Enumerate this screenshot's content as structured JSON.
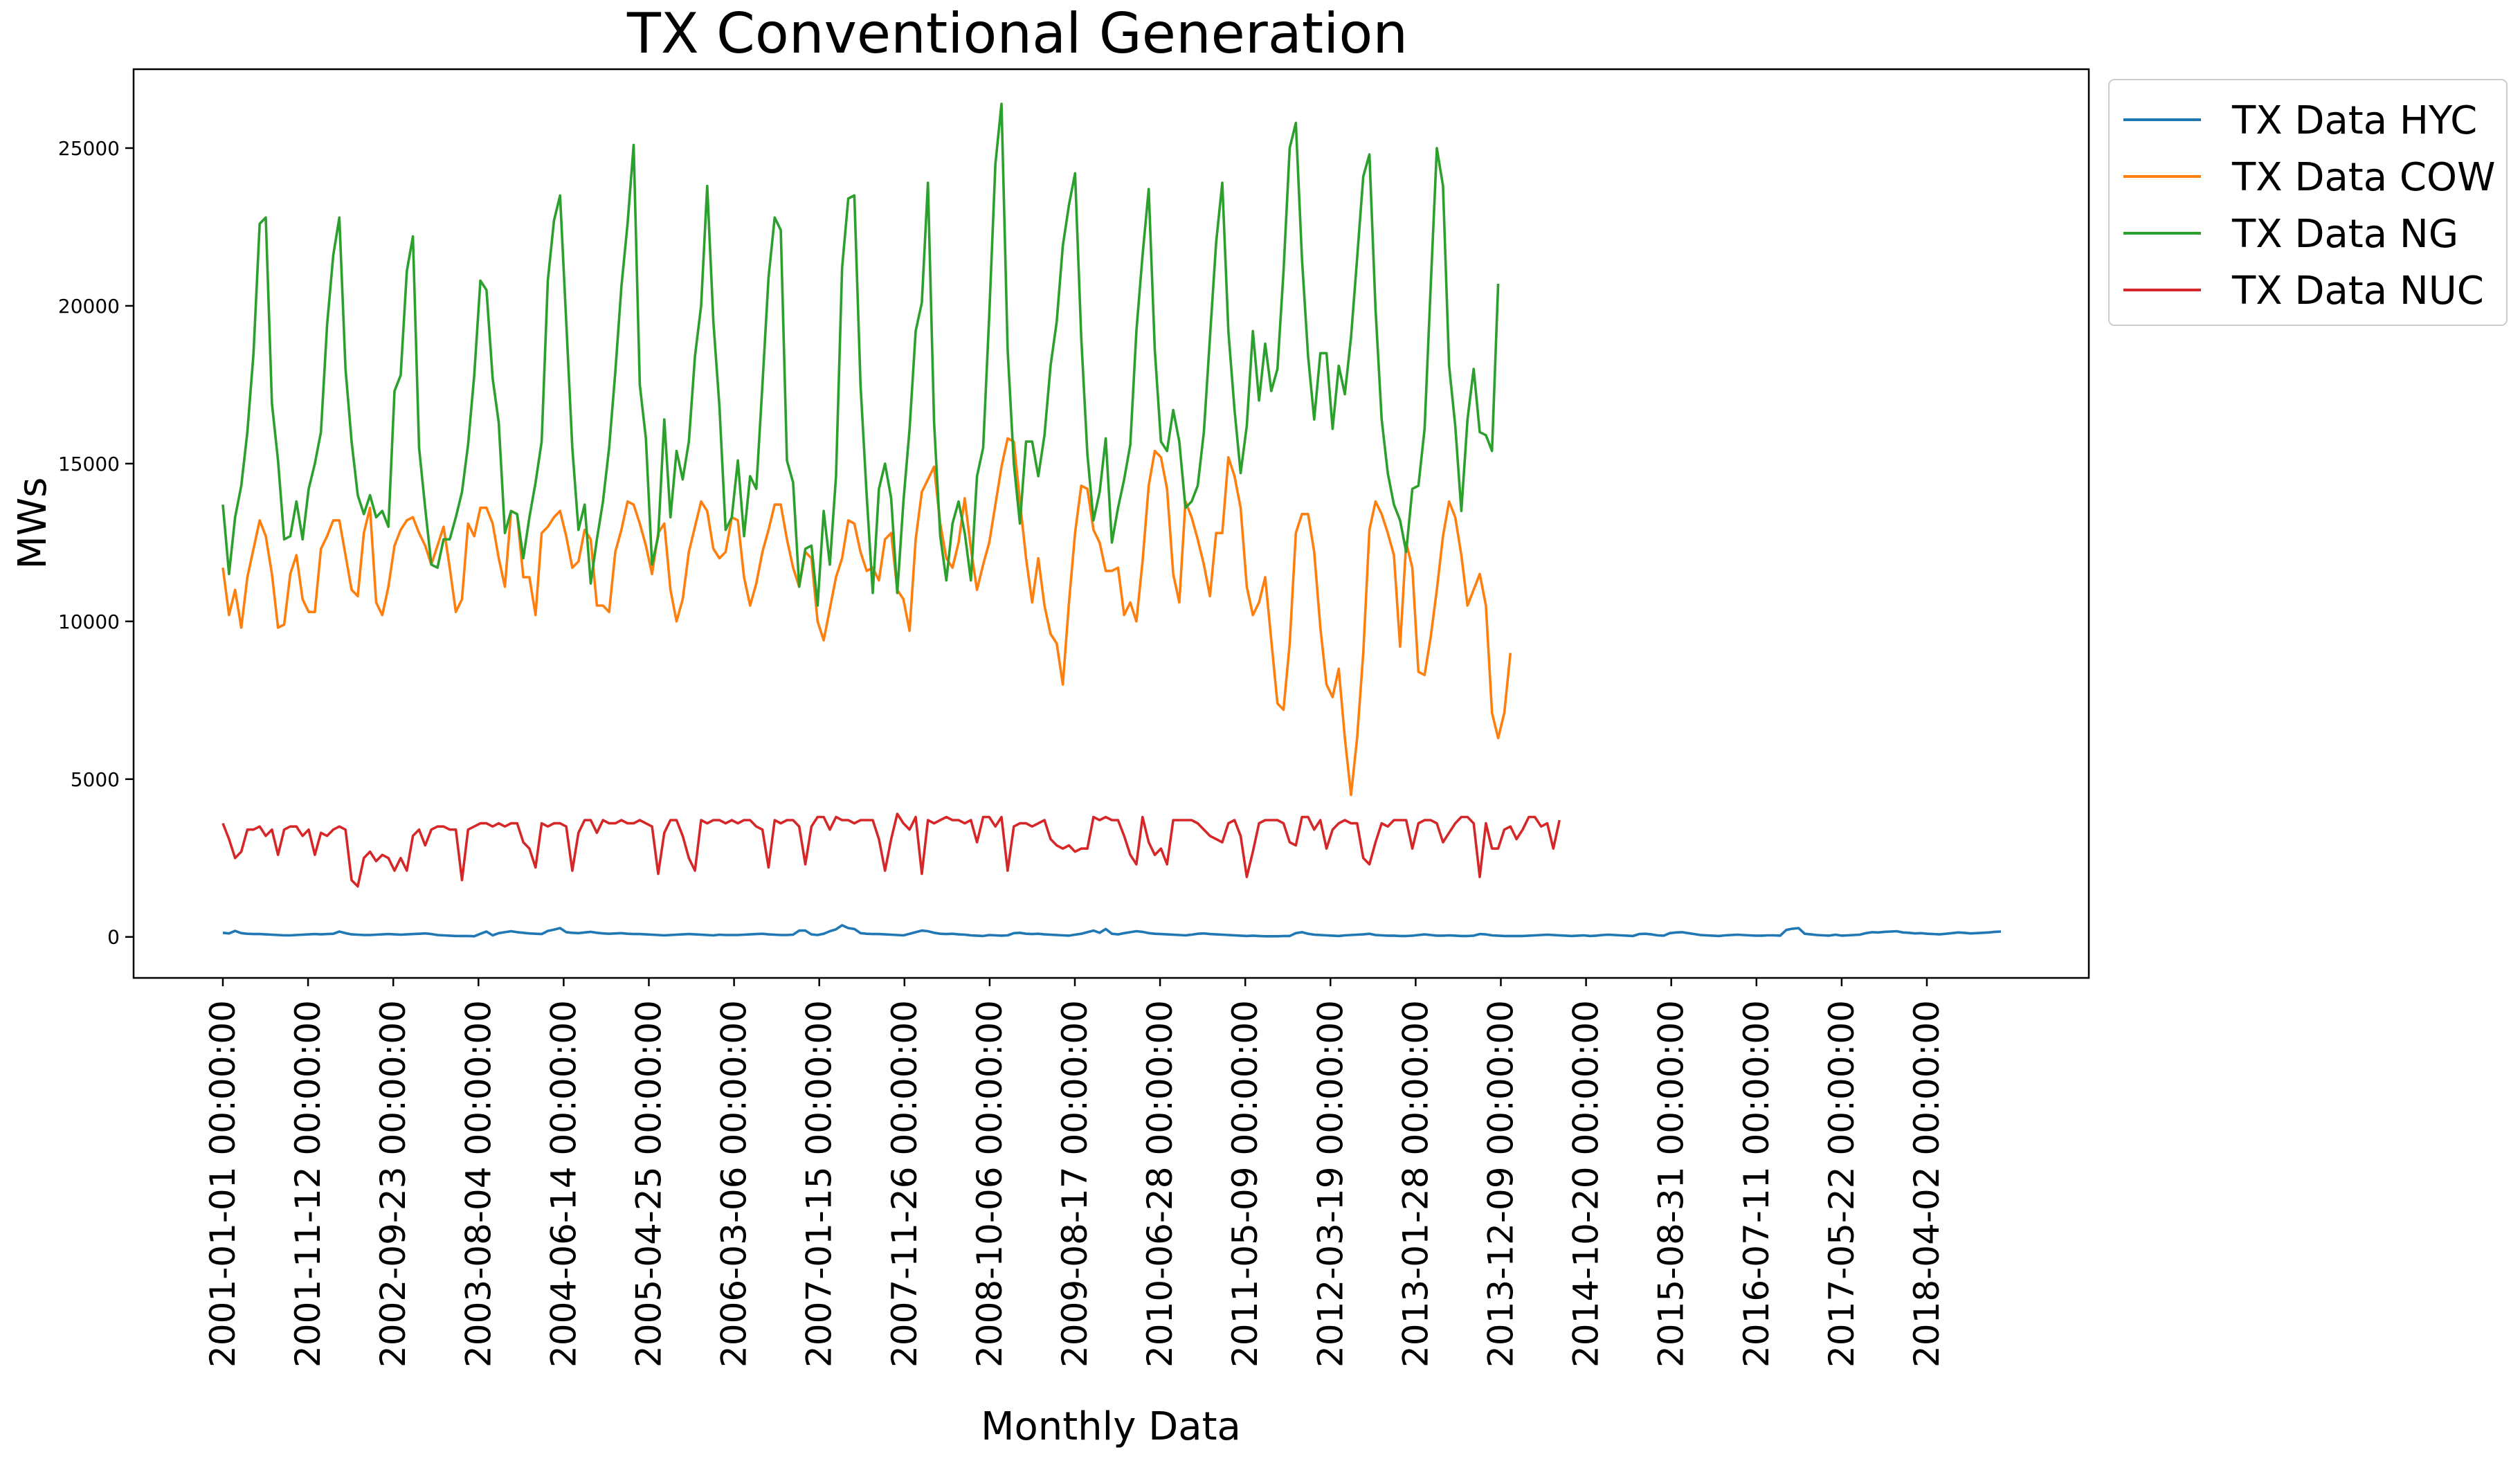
{
  "chart_data": {
    "type": "line",
    "title": "TX Conventional Generation",
    "xlabel": "Monthly Data",
    "ylabel": "MWs",
    "ylim": [
      -1300,
      27500
    ],
    "yticks": [
      "0",
      "5000",
      "10000",
      "15000",
      "20000",
      "25000"
    ],
    "yticks_values": [
      0,
      5000,
      10000,
      15000,
      20000,
      25000
    ],
    "xticks": [
      "2001-01-01 00:00:00",
      "2001-11-12 00:00:00",
      "2002-09-23 00:00:00",
      "2003-08-04 00:00:00",
      "2004-06-14 00:00:00",
      "2005-04-25 00:00:00",
      "2006-03-06 00:00:00",
      "2007-01-15 00:00:00",
      "2007-11-26 00:00:00",
      "2008-10-06 00:00:00",
      "2009-08-17 00:00:00",
      "2010-06-28 00:00:00",
      "2011-05-09 00:00:00",
      "2012-03-19 00:00:00",
      "2013-01-28 00:00:00",
      "2013-12-09 00:00:00",
      "2014-10-20 00:00:00",
      "2015-08-31 00:00:00",
      "2016-07-11 00:00:00",
      "2017-05-22 00:00:00",
      "2018-04-02 00:00:00"
    ],
    "legend_position": "outside-top-right",
    "grid": false,
    "series": [
      {
        "name": "TX Data HYC",
        "color": "#1f77b4",
        "values": [
          130,
          110,
          190,
          120,
          100,
          90,
          90,
          80,
          70,
          60,
          50,
          50,
          60,
          70,
          80,
          90,
          80,
          90,
          100,
          170,
          120,
          80,
          70,
          60,
          60,
          70,
          80,
          90,
          80,
          70,
          80,
          90,
          100,
          110,
          90,
          60,
          50,
          40,
          30,
          30,
          30,
          20,
          100,
          170,
          50,
          120,
          150,
          180,
          150,
          130,
          110,
          100,
          90,
          190,
          230,
          280,
          150,
          130,
          120,
          140,
          160,
          130,
          110,
          100,
          110,
          120,
          100,
          90,
          90,
          80,
          70,
          60,
          50,
          60,
          70,
          80,
          90,
          80,
          70,
          60,
          50,
          70,
          60,
          60,
          60,
          70,
          80,
          90,
          100,
          80,
          70,
          60,
          60,
          70,
          200,
          200,
          80,
          60,
          100,
          180,
          240,
          370,
          280,
          250,
          120,
          100,
          90,
          90,
          80,
          70,
          60,
          50,
          100,
          150,
          200,
          180,
          130,
          100,
          90,
          100,
          80,
          70,
          50,
          40,
          30,
          60,
          50,
          40,
          50,
          120,
          130,
          100,
          90,
          100,
          80,
          70,
          60,
          50,
          40,
          70,
          100,
          150,
          200,
          130,
          250,
          100,
          80,
          120,
          150,
          180,
          160,
          120,
          100,
          90,
          80,
          70,
          60,
          50,
          70,
          100,
          110,
          90,
          80,
          70,
          60,
          50,
          40,
          30,
          40,
          30,
          20,
          20,
          20,
          30,
          30,
          120,
          150,
          100,
          70,
          60,
          50,
          40,
          30,
          50,
          60,
          70,
          80,
          100,
          60,
          50,
          40,
          40,
          30,
          30,
          40,
          60,
          80,
          60,
          40,
          40,
          50,
          40,
          30,
          30,
          40,
          90,
          80,
          50,
          40,
          30,
          30,
          30,
          30,
          40,
          50,
          60,
          70,
          60,
          50,
          40,
          30,
          40,
          50,
          30,
          40,
          60,
          70,
          60,
          50,
          40,
          30,
          90,
          100,
          80,
          50,
          40,
          120,
          140,
          150,
          120,
          90,
          60,
          50,
          40,
          30,
          50,
          60,
          70,
          60,
          50,
          40,
          40,
          50,
          50,
          40,
          220,
          260,
          280,
          100,
          80,
          60,
          50,
          40,
          70,
          40,
          50,
          60,
          70,
          120,
          150,
          140,
          160,
          170,
          180,
          140,
          130,
          110,
          120,
          100,
          90,
          80,
          100,
          120,
          140,
          130,
          110,
          120,
          130,
          140,
          160,
          170
        ]
      },
      {
        "name": "TX Data COW",
        "color": "#ff7f0e",
        "values": [
          11700,
          10200,
          11000,
          9800,
          11400,
          12300,
          13200,
          12700,
          11500,
          9800,
          9900,
          11500,
          12100,
          10700,
          10300,
          10300,
          12300,
          12700,
          13200,
          13200,
          12100,
          11000,
          10800,
          12800,
          13600,
          10600,
          10200,
          11100,
          12400,
          12900,
          13200,
          13300,
          12800,
          12400,
          11800,
          12400,
          13000,
          11700,
          10300,
          10700,
          13100,
          12700,
          13600,
          13600,
          13100,
          12000,
          11100,
          13500,
          13400,
          11400,
          11400,
          10200,
          12800,
          13000,
          13300,
          13500,
          12700,
          11700,
          11900,
          12900,
          12600,
          10500,
          10500,
          10300,
          12200,
          12900,
          13800,
          13700,
          13100,
          12400,
          11500,
          12800,
          13100,
          11000,
          10000,
          10700,
          12200,
          13000,
          13800,
          13500,
          12300,
          12000,
          12200,
          13300,
          13200,
          11400,
          10500,
          11200,
          12200,
          12900,
          13700,
          13700,
          12600,
          11700,
          11100,
          12200,
          12000,
          10000,
          9400,
          10400,
          11400,
          12000,
          13200,
          13100,
          12200,
          11600,
          11700,
          11300,
          12600,
          12800,
          11000,
          10700,
          9700,
          12600,
          14100,
          14500,
          14900,
          13100,
          12000,
          11700,
          12500,
          13900,
          12300,
          11000,
          11800,
          12500,
          13700,
          14900,
          15800,
          15700,
          13800,
          12000,
          10600,
          12000,
          10500,
          9600,
          9300,
          8000,
          10600,
          12800,
          14300,
          14200,
          12900,
          12500,
          11600,
          11600,
          11700,
          10200,
          10600,
          10000,
          11900,
          14300,
          15400,
          15200,
          14200,
          11500,
          10600,
          13800,
          13300,
          12600,
          11800,
          10800,
          12800,
          12800,
          15200,
          14600,
          13600,
          11100,
          10200,
          10600,
          11400,
          9400,
          7400,
          7200,
          9300,
          12800,
          13400,
          13400,
          12200,
          9800,
          8000,
          7600,
          8500,
          6300,
          4500,
          6300,
          9000,
          12900,
          13800,
          13400,
          12800,
          12100,
          9200,
          12500,
          11700,
          8400,
          8300,
          9500,
          11000,
          12700,
          13800,
          13300,
          12100,
          10500,
          11000,
          11500,
          10500,
          7100,
          6300,
          7100,
          9000
        ]
      },
      {
        "name": "TX Data NG",
        "color": "#2ca02c",
        "values": [
          13700,
          11500,
          13300,
          14300,
          16000,
          18500,
          22600,
          22800,
          16900,
          15100,
          12600,
          12700,
          13800,
          12600,
          14200,
          15000,
          16000,
          19400,
          21600,
          22800,
          18000,
          15700,
          14000,
          13400,
          14000,
          13300,
          13500,
          13000,
          17300,
          17800,
          21100,
          22200,
          15500,
          13600,
          11800,
          11700,
          12600,
          12600,
          13300,
          14100,
          15600,
          17800,
          20800,
          20500,
          17700,
          16300,
          12800,
          13500,
          13400,
          12000,
          13300,
          14400,
          15700,
          20800,
          22700,
          23500,
          19500,
          15500,
          12900,
          13700,
          11200,
          12600,
          13800,
          15500,
          17900,
          20600,
          22600,
          25100,
          17500,
          15800,
          11800,
          12700,
          16400,
          13300,
          15400,
          14500,
          15700,
          18400,
          20000,
          23800,
          19500,
          16800,
          12900,
          13300,
          15100,
          12700,
          14600,
          14200,
          17500,
          20900,
          22800,
          22400,
          15100,
          14400,
          11100,
          12300,
          12400,
          10500,
          13500,
          11800,
          14600,
          21200,
          23400,
          23500,
          17500,
          14000,
          10900,
          14200,
          15000,
          13900,
          10900,
          13800,
          16100,
          19200,
          20100,
          23900,
          16300,
          12700,
          11300,
          13100,
          13800,
          12800,
          11300,
          14600,
          15500,
          19700,
          24500,
          26400,
          18600,
          15000,
          13100,
          15700,
          15700,
          14600,
          15900,
          18100,
          19500,
          21900,
          23200,
          24200,
          19000,
          15300,
          13200,
          14100,
          15800,
          12500,
          13600,
          14500,
          15600,
          19200,
          21600,
          23700,
          18600,
          15700,
          15400,
          16700,
          15700,
          13600,
          13800,
          14300,
          16000,
          19000,
          22000,
          23900,
          19200,
          16700,
          14700,
          16200,
          19200,
          17000,
          18800,
          17300,
          18000,
          21100,
          25000,
          25800,
          21500,
          18400,
          16400,
          18500,
          18500,
          16100,
          18100,
          17200,
          19000,
          21500,
          24100,
          24800,
          19900,
          16400,
          14700,
          13700,
          13200,
          12200,
          14200,
          14300,
          16100,
          20600,
          25000,
          23800,
          18100,
          16200,
          13500,
          16400,
          18000,
          16000,
          15900,
          15400,
          20700
        ]
      },
      {
        "name": "TX Data NUC",
        "color": "#d62728",
        "values": [
          3600,
          3100,
          2500,
          2700,
          3400,
          3400,
          3500,
          3200,
          3400,
          2600,
          3400,
          3500,
          3500,
          3200,
          3400,
          2600,
          3300,
          3200,
          3400,
          3500,
          3400,
          1800,
          1600,
          2500,
          2700,
          2400,
          2600,
          2500,
          2100,
          2500,
          2100,
          3200,
          3400,
          2900,
          3400,
          3500,
          3500,
          3400,
          3400,
          1800,
          3400,
          3500,
          3600,
          3600,
          3500,
          3600,
          3500,
          3600,
          3600,
          3000,
          2800,
          2200,
          3600,
          3500,
          3600,
          3600,
          3500,
          2100,
          3300,
          3700,
          3700,
          3300,
          3700,
          3600,
          3600,
          3700,
          3600,
          3600,
          3700,
          3600,
          3500,
          2000,
          3300,
          3700,
          3700,
          3200,
          2500,
          2100,
          3700,
          3600,
          3700,
          3700,
          3600,
          3700,
          3600,
          3700,
          3700,
          3500,
          3400,
          2200,
          3700,
          3600,
          3700,
          3700,
          3500,
          2300,
          3500,
          3800,
          3800,
          3400,
          3800,
          3700,
          3700,
          3600,
          3700,
          3700,
          3700,
          3100,
          2100,
          3100,
          3900,
          3600,
          3400,
          3800,
          2000,
          3700,
          3600,
          3700,
          3800,
          3700,
          3700,
          3600,
          3700,
          3000,
          3800,
          3800,
          3500,
          3800,
          2100,
          3500,
          3600,
          3600,
          3500,
          3600,
          3700,
          3100,
          2900,
          2800,
          2900,
          2700,
          2800,
          2800,
          3800,
          3700,
          3800,
          3700,
          3700,
          3200,
          2600,
          2300,
          3800,
          3000,
          2600,
          2800,
          2300,
          3700,
          3700,
          3700,
          3700,
          3600,
          3400,
          3200,
          3100,
          3000,
          3600,
          3700,
          3200,
          1900,
          2700,
          3600,
          3700,
          3700,
          3700,
          3600,
          3000,
          2900,
          3800,
          3800,
          3400,
          3700,
          2800,
          3400,
          3600,
          3700,
          3600,
          3600,
          2500,
          2300,
          3000,
          3600,
          3500,
          3700,
          3700,
          3700,
          2800,
          3600,
          3700,
          3700,
          3600,
          3000,
          3300,
          3600,
          3800,
          3800,
          3600,
          1900,
          3600,
          2800,
          2800,
          3400,
          3500,
          3100,
          3400,
          3800,
          3800,
          3500,
          3600,
          2800,
          3700
        ]
      }
    ]
  }
}
